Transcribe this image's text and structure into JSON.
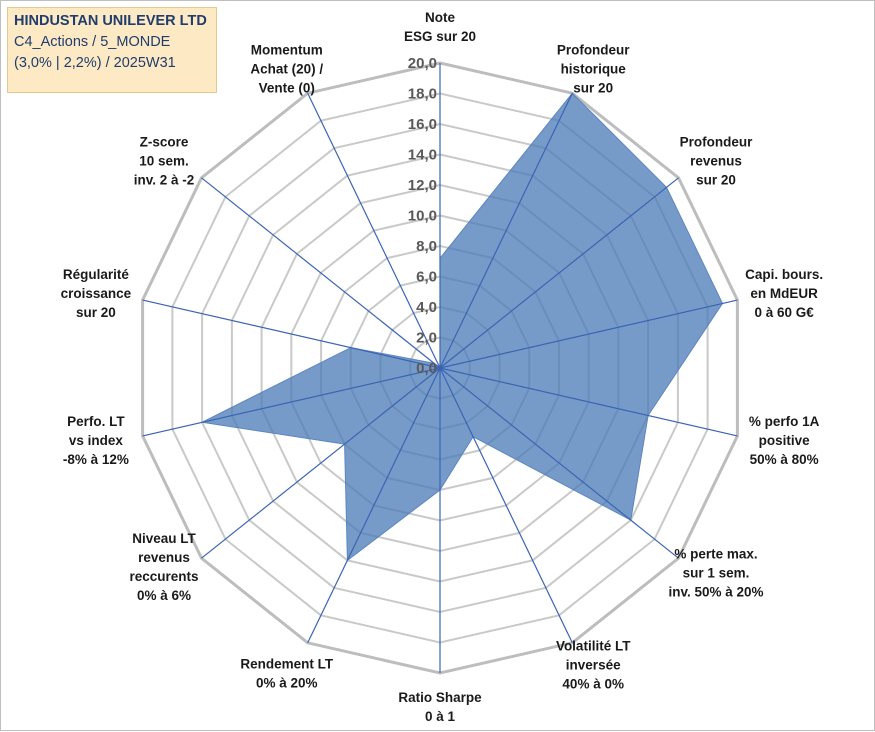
{
  "title": {
    "line1": "HINDUSTAN UNILEVER LTD",
    "line2": "C4_Actions / 5_MONDE",
    "line3": "(3,0% | 2,2%) / 2025W31"
  },
  "colors": {
    "fill": "#4a7ab5",
    "axis_line": "#3a64b4",
    "grid": "#c9c9c9",
    "title_bg": "#fde9c3",
    "title_text": "#1f3d6e"
  },
  "chart_data": {
    "type": "radar",
    "rmin": 0,
    "rmax": 20,
    "grid": true,
    "ticks": [
      "0,0",
      "2,0",
      "4,0",
      "6,0",
      "8,0",
      "10,0",
      "12,0",
      "14,0",
      "16,0",
      "18,0",
      "20,0"
    ],
    "axes": [
      [
        "Note",
        "ESG sur 20"
      ],
      [
        "Profondeur",
        "historique",
        "sur 20"
      ],
      [
        "Profondeur",
        "revenus",
        "sur 20"
      ],
      [
        "Capi. bours.",
        "en MdEUR",
        "0 à 60 G€"
      ],
      [
        "% perfo 1A",
        "positive",
        "50% à 80%"
      ],
      [
        "% perte max.",
        "sur 1 sem.",
        "inv. 50% à 20%"
      ],
      [
        "Volatilité LT",
        "inversée",
        "40% à 0%"
      ],
      [
        "Ratio Sharpe",
        "0 à 1"
      ],
      [
        "Rendement LT",
        "0% à 20%"
      ],
      [
        "Niveau LT",
        "revenus",
        "reccurents",
        "0% à 6%"
      ],
      [
        "Perfo. LT",
        "vs index",
        "-8% à 12%"
      ],
      [
        "Régularité",
        "croissance",
        "sur 20"
      ],
      [
        "Z-score",
        "10 sem.",
        "inv. 2 à -2"
      ],
      [
        "Momentum",
        "Achat (20) /",
        "Vente (0)"
      ]
    ],
    "values": [
      7.2,
      20.0,
      19.0,
      19.0,
      14.0,
      16.0,
      5.0,
      8.0,
      14.0,
      8.0,
      16.0,
      6.0,
      0.5,
      0.0
    ]
  }
}
